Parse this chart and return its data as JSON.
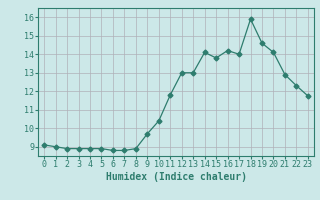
{
  "x": [
    0,
    1,
    2,
    3,
    4,
    5,
    6,
    7,
    8,
    9,
    10,
    11,
    12,
    13,
    14,
    15,
    16,
    17,
    18,
    19,
    20,
    21,
    22,
    23
  ],
  "y": [
    9.1,
    9.0,
    8.9,
    8.9,
    8.9,
    8.9,
    8.8,
    8.8,
    8.9,
    9.7,
    10.4,
    11.8,
    13.0,
    13.0,
    14.1,
    13.8,
    14.2,
    14.0,
    15.9,
    14.6,
    14.1,
    12.9,
    12.3,
    11.75
  ],
  "line_color": "#2e7d6e",
  "marker": "D",
  "marker_size": 2.5,
  "bg_color": "#cce8e8",
  "grid_color_minor": "#c8dcdc",
  "grid_color_major": "#b0b0b8",
  "xlabel": "Humidex (Indice chaleur)",
  "xlim": [
    -0.5,
    23.5
  ],
  "ylim": [
    8.5,
    16.5
  ],
  "yticks": [
    9,
    10,
    11,
    12,
    13,
    14,
    15,
    16
  ],
  "xticks": [
    0,
    1,
    2,
    3,
    4,
    5,
    6,
    7,
    8,
    9,
    10,
    11,
    12,
    13,
    14,
    15,
    16,
    17,
    18,
    19,
    20,
    21,
    22,
    23
  ],
  "tick_color": "#2e7d6e",
  "label_fontsize": 7,
  "tick_fontsize": 6
}
